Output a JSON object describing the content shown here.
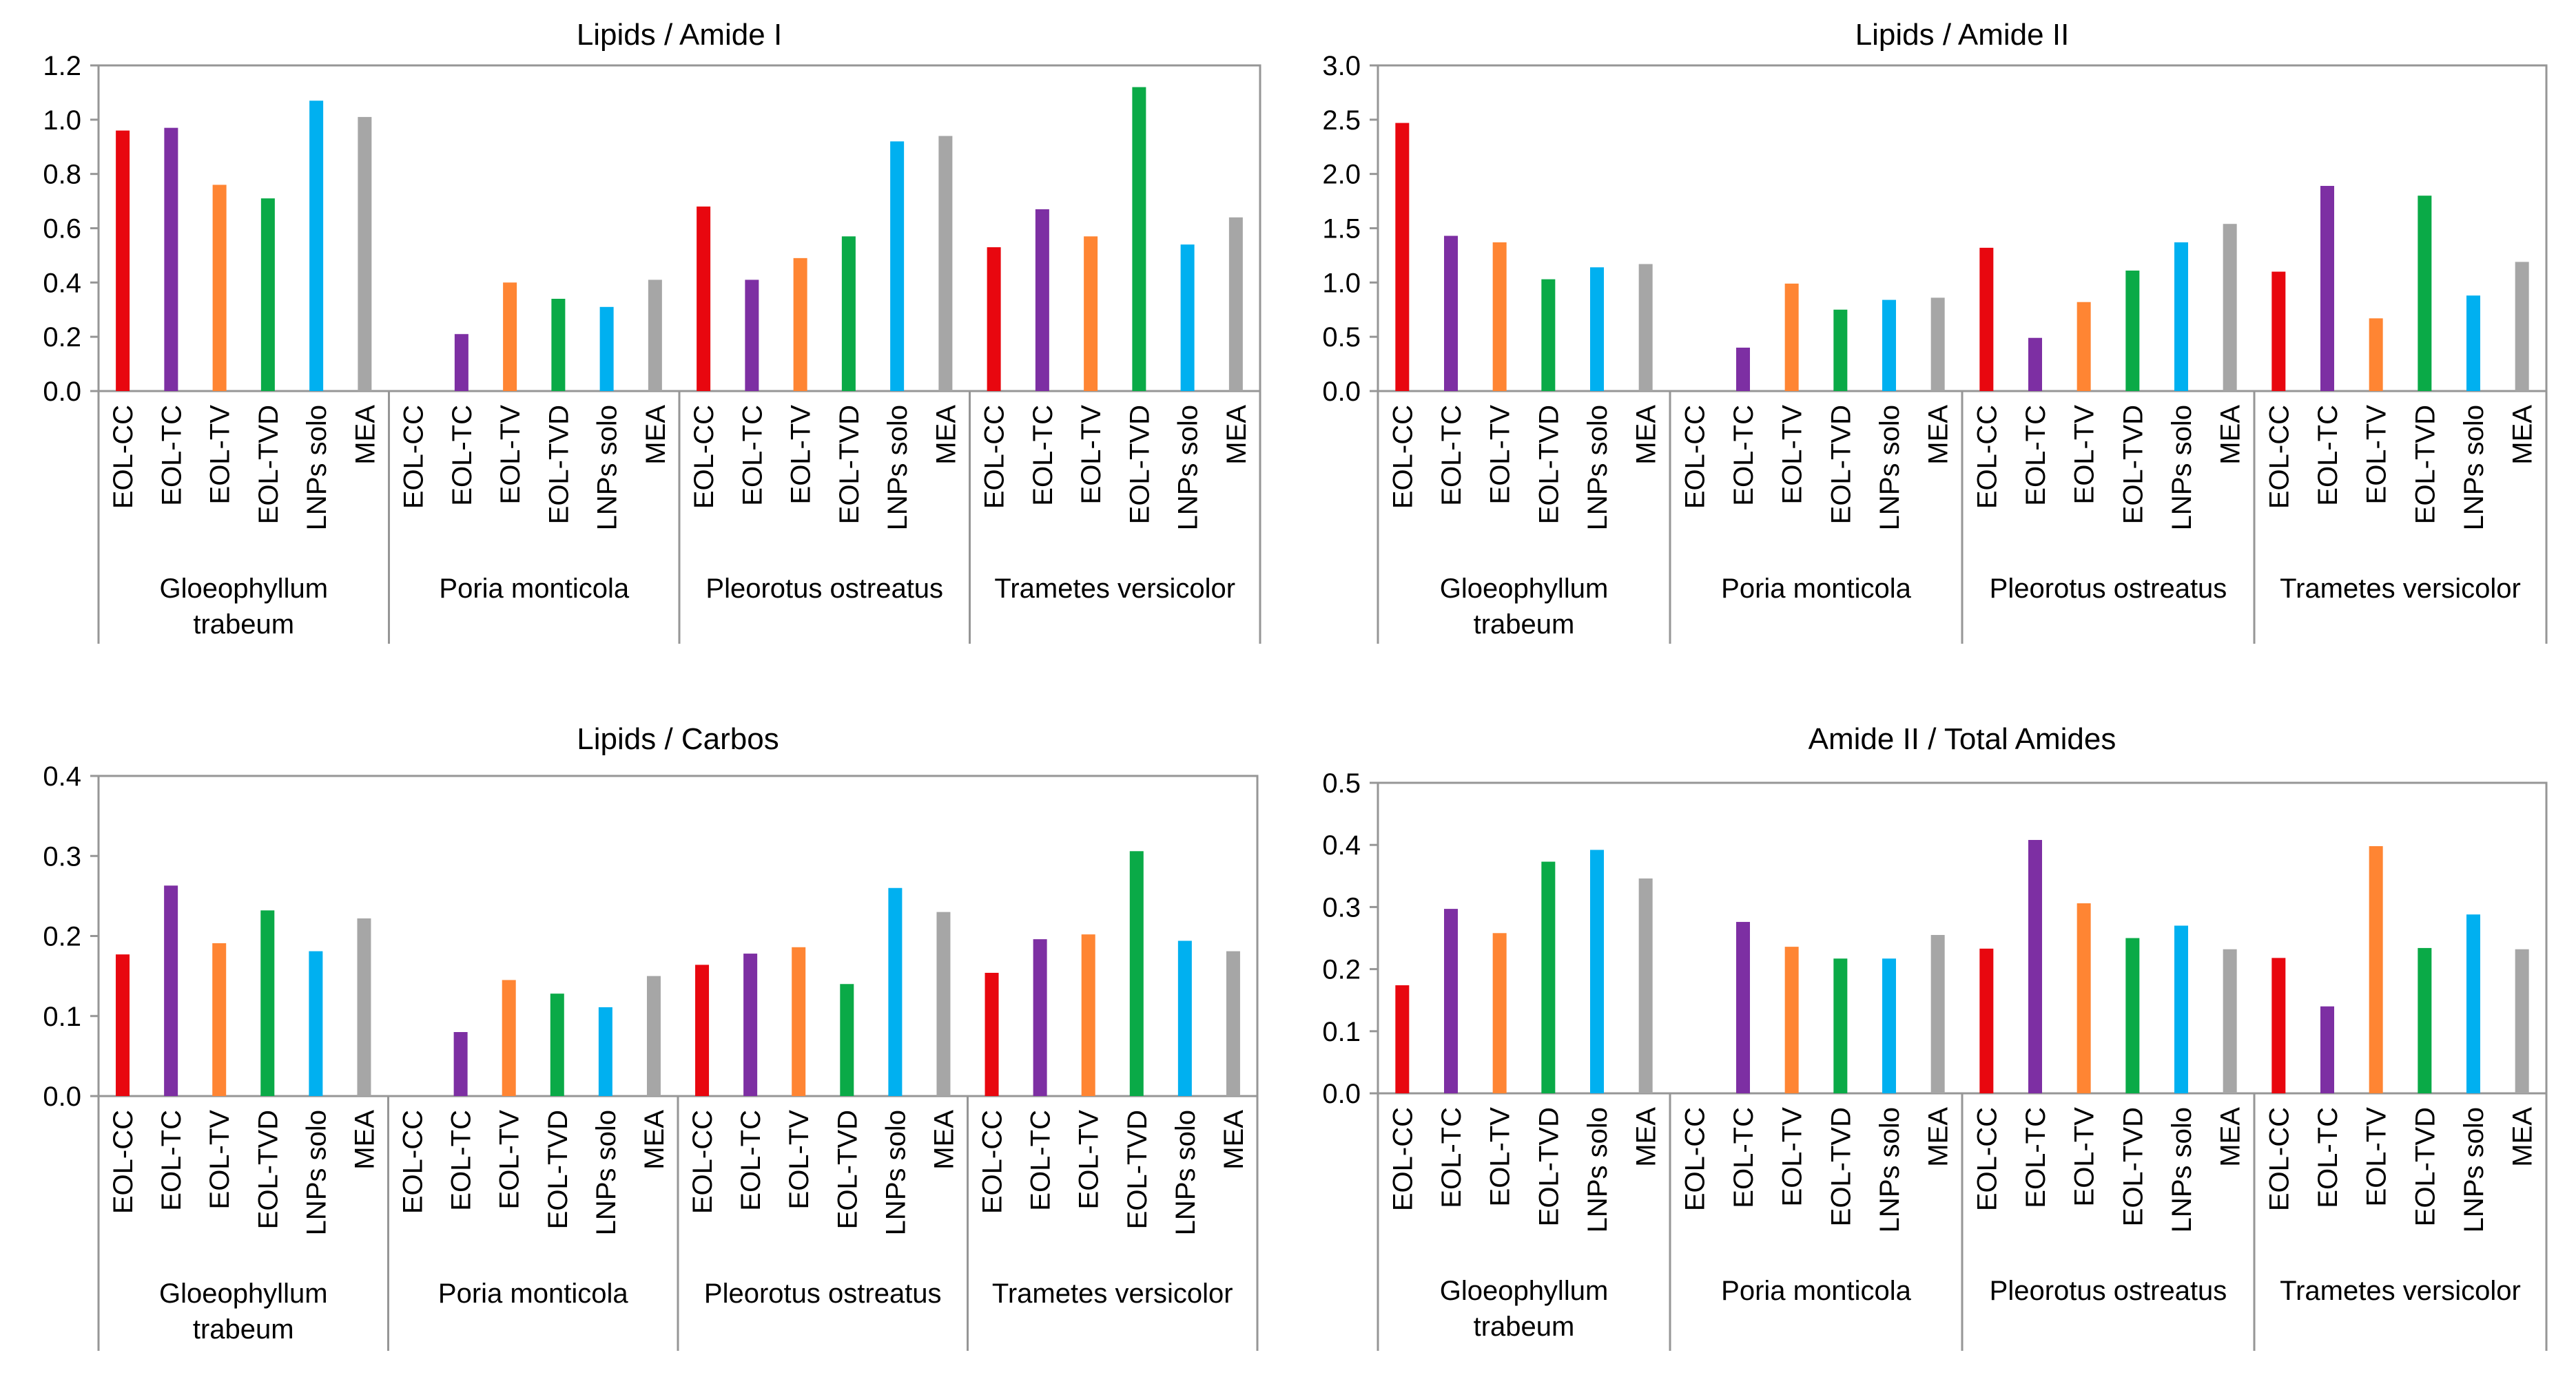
{
  "colors": {
    "EOL-CC": "#e8070f",
    "EOL-TC": "#7d2fa3",
    "EOL-TV": "#ff8533",
    "EOL-TVD": "#0aaa47",
    "LNPs solo": "#00b0f0",
    "MEA": "#a6a6a6",
    "axis": "#969696"
  },
  "chart_data": [
    {
      "type": "bar",
      "title": "Lipids / Amide I",
      "groups": [
        {
          "label": [
            "Gloeophyllum",
            "trabeum"
          ],
          "categories": [
            "EOL-CC",
            "EOL-TC",
            "EOL-TV",
            "EOL-TVD",
            "LNPs solo",
            "MEA"
          ],
          "values": [
            0.96,
            0.97,
            0.76,
            0.71,
            1.07,
            1.01
          ]
        },
        {
          "label": [
            "Poria monticola"
          ],
          "categories": [
            "EOL-CC",
            "EOL-TC",
            "EOL-TV",
            "EOL-TVD",
            "LNPs solo",
            "MEA"
          ],
          "values": [
            0,
            0.21,
            0.4,
            0.34,
            0.31,
            0.41
          ]
        },
        {
          "label": [
            "Pleorotus ostreatus"
          ],
          "categories": [
            "EOL-CC",
            "EOL-TC",
            "EOL-TV",
            "EOL-TVD",
            "LNPs solo",
            "MEA"
          ],
          "values": [
            0.68,
            0.41,
            0.49,
            0.57,
            0.92,
            0.94
          ]
        },
        {
          "label": [
            "Trametes versicolor"
          ],
          "categories": [
            "EOL-CC",
            "EOL-TC",
            "EOL-TV",
            "EOL-TVD",
            "LNPs solo",
            "MEA"
          ],
          "values": [
            0.53,
            0.67,
            0.57,
            1.12,
            0.54,
            0.64
          ]
        }
      ],
      "ylim": [
        0,
        1.2
      ],
      "yticks": [
        "0.0",
        "0.2",
        "0.4",
        "0.6",
        "0.8",
        "1.0",
        "1.2"
      ],
      "xlabel": "",
      "ylabel": ""
    },
    {
      "type": "bar",
      "title": "Lipids / Amide II",
      "groups": [
        {
          "label": [
            "Gloeophyllum",
            "trabeum"
          ],
          "categories": [
            "EOL-CC",
            "EOL-TC",
            "EOL-TV",
            "EOL-TVD",
            "LNPs solo",
            "MEA"
          ],
          "values": [
            2.47,
            1.43,
            1.37,
            1.03,
            1.14,
            1.17
          ]
        },
        {
          "label": [
            "Poria monticola"
          ],
          "categories": [
            "EOL-CC",
            "EOL-TC",
            "EOL-TV",
            "EOL-TVD",
            "LNPs solo",
            "MEA"
          ],
          "values": [
            0,
            0.4,
            0.99,
            0.75,
            0.84,
            0.86
          ]
        },
        {
          "label": [
            "Pleorotus ostreatus"
          ],
          "categories": [
            "EOL-CC",
            "EOL-TC",
            "EOL-TV",
            "EOL-TVD",
            "LNPs solo",
            "MEA"
          ],
          "values": [
            1.32,
            0.49,
            0.82,
            1.11,
            1.37,
            1.54
          ]
        },
        {
          "label": [
            "Trametes versicolor"
          ],
          "categories": [
            "EOL-CC",
            "EOL-TC",
            "EOL-TV",
            "EOL-TVD",
            "LNPs solo",
            "MEA"
          ],
          "values": [
            1.1,
            1.89,
            0.67,
            1.8,
            0.88,
            1.19
          ]
        }
      ],
      "ylim": [
        0,
        3.0
      ],
      "yticks": [
        "0.0",
        "0.5",
        "1.0",
        "1.5",
        "2.0",
        "2.5",
        "3.0"
      ],
      "xlabel": "",
      "ylabel": ""
    },
    {
      "type": "bar",
      "title": "Lipids / Carbos",
      "groups": [
        {
          "label": [
            "Gloeophyllum",
            "trabeum"
          ],
          "categories": [
            "EOL-CC",
            "EOL-TC",
            "EOL-TV",
            "EOL-TVD",
            "LNPs solo",
            "MEA"
          ],
          "values": [
            0.177,
            0.263,
            0.191,
            0.232,
            0.181,
            0.222
          ]
        },
        {
          "label": [
            "Poria monticola"
          ],
          "categories": [
            "EOL-CC",
            "EOL-TC",
            "EOL-TV",
            "EOL-TVD",
            "LNPs solo",
            "MEA"
          ],
          "values": [
            0,
            0.08,
            0.145,
            0.128,
            0.111,
            0.15
          ]
        },
        {
          "label": [
            "Pleorotus ostreatus"
          ],
          "categories": [
            "EOL-CC",
            "EOL-TC",
            "EOL-TV",
            "EOL-TVD",
            "LNPs solo",
            "MEA"
          ],
          "values": [
            0.164,
            0.178,
            0.186,
            0.14,
            0.26,
            0.23
          ]
        },
        {
          "label": [
            "Trametes versicolor"
          ],
          "categories": [
            "EOL-CC",
            "EOL-TC",
            "EOL-TV",
            "EOL-TVD",
            "LNPs solo",
            "MEA"
          ],
          "values": [
            0.154,
            0.196,
            0.202,
            0.306,
            0.194,
            0.181
          ]
        }
      ],
      "ylim": [
        0,
        0.4
      ],
      "yticks": [
        "0.0",
        "0.1",
        "0.2",
        "0.3",
        "0.4"
      ],
      "xlabel": "",
      "ylabel": ""
    },
    {
      "type": "bar",
      "title": "Amide II / Total Amides",
      "groups": [
        {
          "label": [
            "Gloeophyllum",
            "trabeum"
          ],
          "categories": [
            "EOL-CC",
            "EOL-TC",
            "EOL-TV",
            "EOL-TVD",
            "LNPs solo",
            "MEA"
          ],
          "values": [
            0.174,
            0.297,
            0.258,
            0.373,
            0.392,
            0.346
          ]
        },
        {
          "label": [
            "Poria monticola"
          ],
          "categories": [
            "EOL-CC",
            "EOL-TC",
            "EOL-TV",
            "EOL-TVD",
            "LNPs solo",
            "MEA"
          ],
          "values": [
            0,
            0.276,
            0.236,
            0.217,
            0.217,
            0.255
          ]
        },
        {
          "label": [
            "Pleorotus ostreatus"
          ],
          "categories": [
            "EOL-CC",
            "EOL-TC",
            "EOL-TV",
            "EOL-TVD",
            "LNPs solo",
            "MEA"
          ],
          "values": [
            0.233,
            0.408,
            0.306,
            0.25,
            0.27,
            0.232
          ]
        },
        {
          "label": [
            "Trametes versicolor"
          ],
          "categories": [
            "EOL-CC",
            "EOL-TC",
            "EOL-TV",
            "EOL-TVD",
            "LNPs solo",
            "MEA"
          ],
          "values": [
            0.218,
            0.14,
            0.398,
            0.234,
            0.288,
            0.232
          ]
        }
      ],
      "ylim": [
        0,
        0.5
      ],
      "yticks": [
        "0.0",
        "0.1",
        "0.2",
        "0.3",
        "0.4",
        "0.5"
      ],
      "xlabel": "",
      "ylabel": ""
    }
  ]
}
